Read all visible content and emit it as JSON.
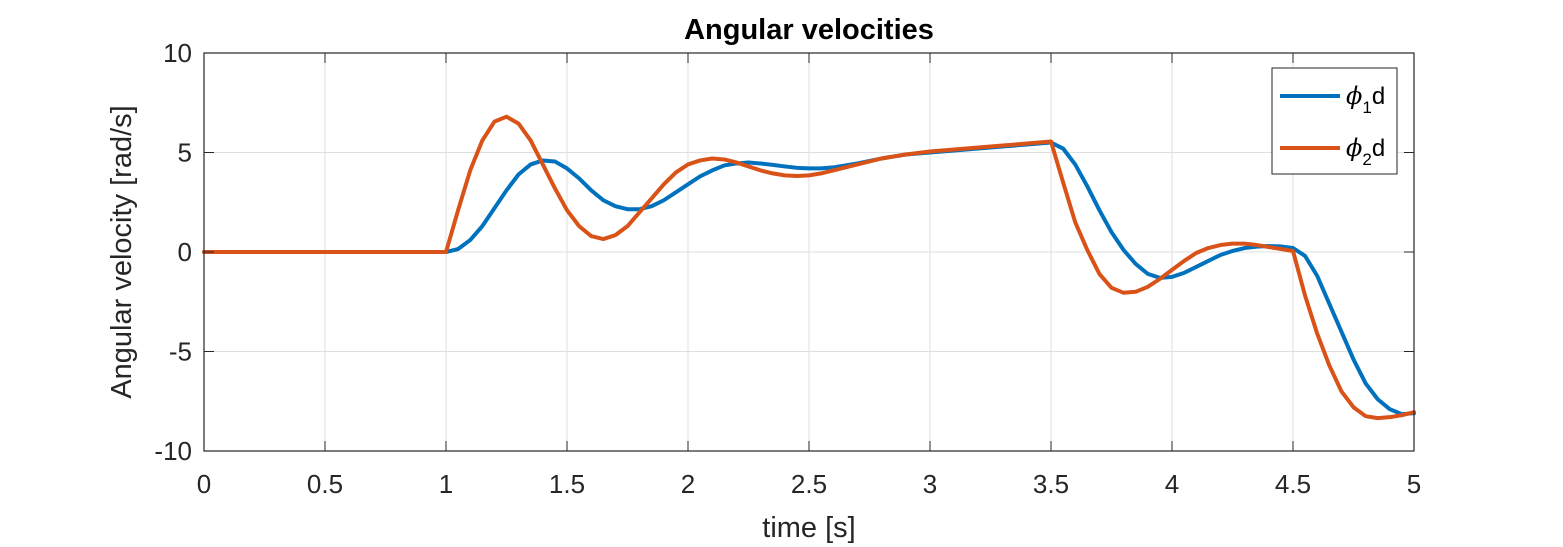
{
  "chart_data": {
    "type": "line",
    "title": "Angular velocities",
    "xlabel": "time [s]",
    "ylabel": "Angular velocity [rad/s]",
    "xlim": [
      0,
      5
    ],
    "ylim": [
      -10,
      10
    ],
    "x_ticks": [
      "0",
      "0.5",
      "1",
      "1.5",
      "2",
      "2.5",
      "3",
      "3.5",
      "4",
      "4.5",
      "5"
    ],
    "y_ticks": [
      "10",
      "5",
      "0",
      "-5",
      "-10"
    ],
    "grid": true,
    "legend_position": "top-right",
    "series": [
      {
        "name": "ϕ",
        "name_sub": "1",
        "name_suffix": "d",
        "color": "#0072BD",
        "x": [
          0,
          1.0,
          1.05,
          1.1,
          1.15,
          1.2,
          1.25,
          1.3,
          1.35,
          1.4,
          1.45,
          1.5,
          1.55,
          1.6,
          1.65,
          1.7,
          1.75,
          1.8,
          1.85,
          1.9,
          1.95,
          2.0,
          2.05,
          2.1,
          2.15,
          2.2,
          2.25,
          2.3,
          2.35,
          2.4,
          2.45,
          2.5,
          2.55,
          2.6,
          2.7,
          2.8,
          2.9,
          3.0,
          3.1,
          3.2,
          3.3,
          3.4,
          3.5,
          3.55,
          3.6,
          3.65,
          3.7,
          3.75,
          3.8,
          3.85,
          3.9,
          3.95,
          4.0,
          4.05,
          4.1,
          4.15,
          4.2,
          4.25,
          4.3,
          4.35,
          4.4,
          4.45,
          4.5,
          4.55,
          4.6,
          4.65,
          4.7,
          4.75,
          4.8,
          4.85,
          4.9,
          4.95,
          5.0
        ],
        "y": [
          0,
          0,
          0.15,
          0.6,
          1.3,
          2.2,
          3.1,
          3.9,
          4.4,
          4.6,
          4.55,
          4.2,
          3.7,
          3.1,
          2.6,
          2.3,
          2.15,
          2.15,
          2.3,
          2.6,
          3.0,
          3.4,
          3.8,
          4.1,
          4.35,
          4.45,
          4.5,
          4.45,
          4.38,
          4.3,
          4.23,
          4.2,
          4.2,
          4.25,
          4.45,
          4.7,
          4.9,
          5.0,
          5.1,
          5.2,
          5.3,
          5.4,
          5.5,
          5.2,
          4.4,
          3.3,
          2.1,
          1.0,
          0.1,
          -0.6,
          -1.1,
          -1.3,
          -1.25,
          -1.05,
          -0.75,
          -0.45,
          -0.15,
          0.05,
          0.2,
          0.27,
          0.3,
          0.28,
          0.2,
          -0.2,
          -1.2,
          -2.6,
          -4.0,
          -5.4,
          -6.6,
          -7.4,
          -7.9,
          -8.15,
          -8.1
        ]
      },
      {
        "name": "ϕ",
        "name_sub": "2",
        "name_suffix": "d",
        "color": "#D95319",
        "x": [
          0,
          1.0,
          1.05,
          1.1,
          1.15,
          1.2,
          1.25,
          1.3,
          1.35,
          1.4,
          1.45,
          1.5,
          1.55,
          1.6,
          1.65,
          1.7,
          1.75,
          1.8,
          1.85,
          1.9,
          1.95,
          2.0,
          2.05,
          2.1,
          2.15,
          2.2,
          2.25,
          2.3,
          2.35,
          2.4,
          2.45,
          2.5,
          2.55,
          2.6,
          2.7,
          2.8,
          2.9,
          3.0,
          3.1,
          3.2,
          3.3,
          3.4,
          3.5,
          3.55,
          3.6,
          3.65,
          3.7,
          3.75,
          3.8,
          3.85,
          3.9,
          3.95,
          4.0,
          4.05,
          4.1,
          4.15,
          4.2,
          4.25,
          4.3,
          4.35,
          4.4,
          4.45,
          4.5,
          4.55,
          4.6,
          4.65,
          4.7,
          4.75,
          4.8,
          4.85,
          4.9,
          4.95,
          5.0
        ],
        "y": [
          0,
          0,
          2.1,
          4.1,
          5.6,
          6.55,
          6.8,
          6.45,
          5.6,
          4.4,
          3.2,
          2.1,
          1.3,
          0.8,
          0.65,
          0.85,
          1.3,
          2.0,
          2.7,
          3.4,
          4.0,
          4.4,
          4.6,
          4.7,
          4.65,
          4.5,
          4.3,
          4.1,
          3.95,
          3.85,
          3.82,
          3.85,
          3.95,
          4.1,
          4.4,
          4.7,
          4.9,
          5.05,
          5.15,
          5.25,
          5.35,
          5.45,
          5.55,
          3.5,
          1.5,
          0.1,
          -1.1,
          -1.8,
          -2.05,
          -2.0,
          -1.75,
          -1.35,
          -0.9,
          -0.45,
          -0.05,
          0.2,
          0.35,
          0.42,
          0.42,
          0.35,
          0.25,
          0.15,
          0.05,
          -2.2,
          -4.1,
          -5.7,
          -7.0,
          -7.8,
          -8.25,
          -8.35,
          -8.3,
          -8.2,
          -8.05
        ]
      }
    ]
  }
}
